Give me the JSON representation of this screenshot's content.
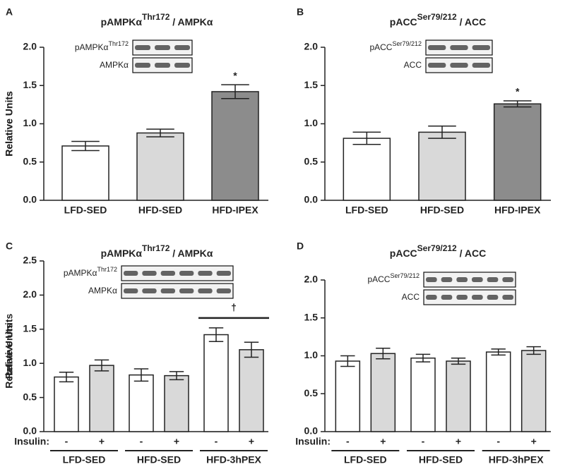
{
  "chart_data": [
    {
      "type": "bar",
      "panel": "A",
      "title": [
        "pAMPKα",
        "Thr172",
        " / AMPKα"
      ],
      "ylabel": "Relative Units",
      "blot_labels": [
        [
          "pAMPKα",
          "Thr172"
        ],
        [
          "AMPKα"
        ]
      ],
      "categories": [
        "LFD-SED",
        "HFD-SED",
        "HFD-IPEX"
      ],
      "values": [
        0.71,
        0.88,
        1.42
      ],
      "errors": [
        0.06,
        0.05,
        0.09
      ],
      "colors": [
        "#ffffff",
        "#d9d9d9",
        "#8c8c8c"
      ],
      "ylim": [
        0,
        2.0
      ],
      "yticks": [
        {
          "value": 0,
          "label": "0.0"
        },
        {
          "value": 0.5,
          "label": "0.5"
        },
        {
          "value": 1,
          "label": "1.0"
        },
        {
          "value": 1.5,
          "label": "1.5"
        },
        {
          "value": 2,
          "label": "2.0"
        }
      ],
      "annotation": "*"
    },
    {
      "type": "bar",
      "panel": "B",
      "title": [
        "pACC",
        "Ser79/212",
        " / ACC"
      ],
      "ylabel": "Relative Units",
      "blot_labels": [
        [
          "pACC",
          "Ser79/212"
        ],
        [
          "ACC"
        ]
      ],
      "categories": [
        "LFD-SED",
        "HFD-SED",
        "HFD-IPEX"
      ],
      "values": [
        0.81,
        0.89,
        1.26
      ],
      "errors": [
        0.08,
        0.08,
        0.04
      ],
      "colors": [
        "#ffffff",
        "#d9d9d9",
        "#8c8c8c"
      ],
      "ylim": [
        0,
        2.0
      ],
      "yticks": [
        {
          "value": 0,
          "label": "0.0"
        },
        {
          "value": 0.5,
          "label": "0.5"
        },
        {
          "value": 1,
          "label": "1.0"
        },
        {
          "value": 1.5,
          "label": "1.5"
        },
        {
          "value": 2,
          "label": "2.0"
        }
      ],
      "annotation": "*"
    },
    {
      "type": "grouped",
      "panel": "C",
      "title": [
        "pAMPKα",
        "Thr172",
        " / AMPKα"
      ],
      "ylabel": "Relative Units",
      "blot_labels": [
        [
          "pAMPKα",
          "Thr172"
        ],
        [
          "AMPKα"
        ]
      ],
      "insulin_label": "Insulin:",
      "categories": [
        "-",
        "+",
        "-",
        "+",
        "-",
        "+"
      ],
      "groups": [
        "LFD-SED",
        "HFD-SED",
        "HFD-3hPEX"
      ],
      "values": [
        0.8,
        0.97,
        0.83,
        0.82,
        1.42,
        1.2
      ],
      "errors": [
        0.07,
        0.08,
        0.09,
        0.06,
        0.1,
        0.11
      ],
      "colors": [
        "#ffffff",
        "#d9d9d9"
      ],
      "ylim": [
        0,
        2.5
      ],
      "yticks": [
        {
          "value": 0,
          "label": "0.0"
        },
        {
          "value": 0.5,
          "label": "0.5"
        },
        {
          "value": 1,
          "label": "1.0"
        },
        {
          "value": 1.5,
          "label": "1.5"
        },
        {
          "value": 2,
          "label": "2.0"
        },
        {
          "value": 2.5,
          "label": "2.5"
        }
      ],
      "annotation": "†"
    },
    {
      "type": "grouped",
      "panel": "D",
      "title": [
        "pACC",
        "Ser79/212",
        " / ACC"
      ],
      "ylabel": "Relative Units",
      "blot_labels": [
        [
          "pACC",
          "Ser79/212"
        ],
        [
          "ACC"
        ]
      ],
      "insulin_label": "Insulin:",
      "categories": [
        "-",
        "+",
        "-",
        "+",
        "-",
        "+"
      ],
      "groups": [
        "LFD-SED",
        "HFD-SED",
        "HFD-3hPEX"
      ],
      "values": [
        0.93,
        1.03,
        0.97,
        0.93,
        1.05,
        1.07
      ],
      "errors": [
        0.07,
        0.07,
        0.05,
        0.04,
        0.04,
        0.05
      ],
      "colors": [
        "#ffffff",
        "#d9d9d9"
      ],
      "ylim": [
        0,
        2.0
      ],
      "yticks": [
        {
          "value": 0,
          "label": "0.0"
        },
        {
          "value": 0.5,
          "label": "0.5"
        },
        {
          "value": 1,
          "label": "1.0"
        },
        {
          "value": 1.5,
          "label": "1.5"
        },
        {
          "value": 2,
          "label": "2.0"
        }
      ]
    }
  ]
}
